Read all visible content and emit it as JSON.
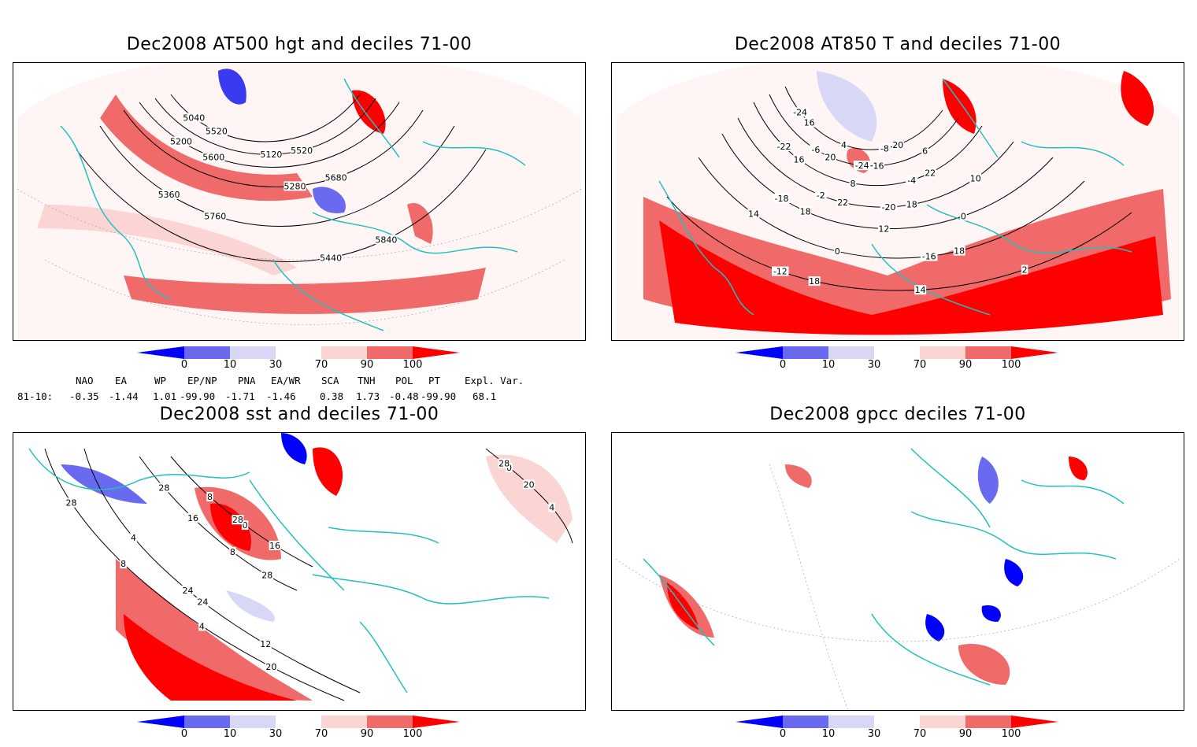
{
  "panels": [
    {
      "title": "Dec2008 AT500 hgt and deciles 71-00",
      "contour_labels": [
        "5040",
        "5120",
        "5200",
        "5280",
        "5360",
        "5440",
        "5520",
        "5520",
        "5600",
        "5680",
        "5760",
        "5840"
      ]
    },
    {
      "title": "Dec2008 AT850 T and deciles 71-00",
      "contour_labels": [
        "-24",
        "-24",
        "-22",
        "-20",
        "-18",
        "-16",
        "-12",
        "-8",
        "-6",
        "-4",
        "-2",
        "0",
        "0",
        "2",
        "4",
        "6",
        "8",
        "10",
        "12",
        "14",
        "14",
        "16",
        "16",
        "16",
        "18",
        "18",
        "18",
        "18",
        "20",
        "20",
        "22",
        "22"
      ]
    },
    {
      "title": "Dec2008 sst and deciles 71-00",
      "contour_labels": [
        "28",
        "24",
        "28",
        "0",
        "0",
        "4",
        "4",
        "8",
        "8",
        "4",
        "8",
        "12",
        "16",
        "16",
        "20",
        "20",
        "24",
        "28",
        "28",
        "28"
      ]
    },
    {
      "title": "Dec2008 gpcc deciles 71-00",
      "contour_labels": []
    }
  ],
  "colorbar": {
    "labels": [
      "0",
      "10",
      "30",
      "70",
      "90",
      "100"
    ],
    "colors": [
      "#0000ff",
      "#6a6af0",
      "#d8d8f6",
      "#ffffff",
      "#fbd4d4",
      "#f06a6a",
      "#ff0000"
    ]
  },
  "indices": {
    "headers": [
      "NAO",
      "EA",
      "WP",
      "EP/NP",
      "PNA",
      "EA/WR",
      "SCA",
      "TNH",
      "POL",
      "PT",
      "Expl. Var."
    ],
    "row_label": "81-10:",
    "values": [
      "-0.35",
      "-1.44",
      "1.01",
      "-99.90",
      "-1.71",
      "-1.46",
      "0.38",
      "1.73",
      "-0.48",
      "-99.90",
      "68.1"
    ]
  },
  "land_outline_color": "#20c0c0"
}
